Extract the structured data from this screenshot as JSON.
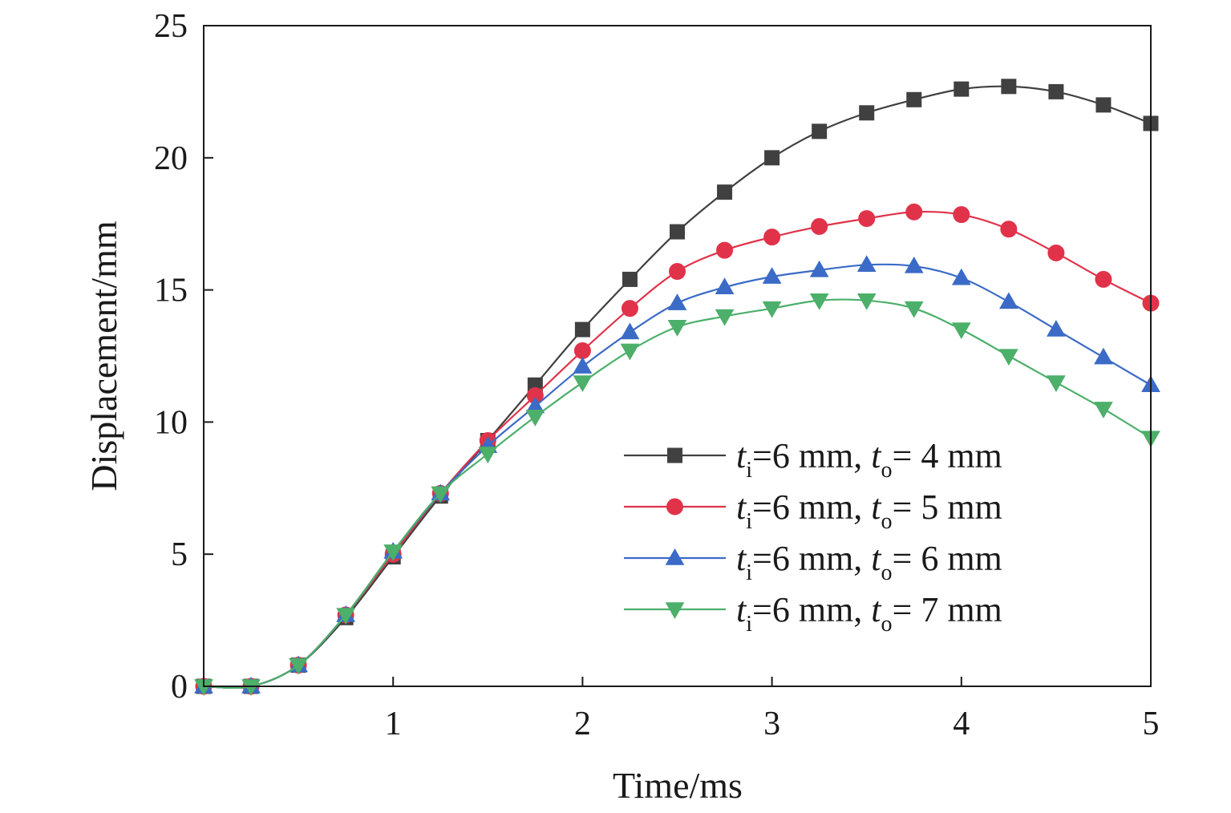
{
  "chart_data": {
    "type": "line",
    "title": "",
    "xlabel": "Time/ms",
    "ylabel": "Displacement/mm",
    "xlim": [
      0,
      5
    ],
    "ylim": [
      0,
      25
    ],
    "xticks": [
      1,
      2,
      3,
      4,
      5
    ],
    "yticks": [
      0,
      5,
      10,
      15,
      20,
      25
    ],
    "grid": false,
    "legend_position": "center-right",
    "x": [
      0,
      0.25,
      0.5,
      0.75,
      1.0,
      1.25,
      1.5,
      1.75,
      2.0,
      2.25,
      2.5,
      2.75,
      3.0,
      3.25,
      3.5,
      3.75,
      4.0,
      4.25,
      4.5,
      4.75,
      5.0
    ],
    "series": [
      {
        "name": "ti=6 mm, to= 4 mm",
        "legend": {
          "t1": "t",
          "s1": "i",
          "mid": "=6 mm, ",
          "t2": "t",
          "s2": "o",
          "tail": "= 4 mm"
        },
        "color": "#404040",
        "marker": "square",
        "values": [
          0,
          0,
          0.8,
          2.6,
          4.9,
          7.2,
          9.3,
          11.4,
          13.5,
          15.4,
          17.2,
          18.7,
          20.0,
          21.0,
          21.7,
          22.2,
          22.6,
          22.7,
          22.5,
          22.0,
          21.3
        ]
      },
      {
        "name": "ti=6 mm, to= 5 mm",
        "legend": {
          "t1": "t",
          "s1": "i",
          "mid": "=6 mm, ",
          "t2": "t",
          "s2": "o",
          "tail": "= 5 mm"
        },
        "color": "#e0334a",
        "marker": "circle",
        "values": [
          0,
          0,
          0.8,
          2.7,
          5.0,
          7.3,
          9.3,
          11.0,
          12.7,
          14.3,
          15.7,
          16.5,
          17.0,
          17.4,
          17.7,
          17.95,
          17.85,
          17.3,
          16.4,
          15.4,
          14.5
        ]
      },
      {
        "name": "ti=6 mm, to= 6 mm",
        "legend": {
          "t1": "t",
          "s1": "i",
          "mid": "=6 mm, ",
          "t2": "t",
          "s2": "o",
          "tail": "= 6 mm"
        },
        "color": "#3b6bc6",
        "marker": "triangle-up",
        "values": [
          0,
          0,
          0.8,
          2.7,
          5.1,
          7.3,
          9.1,
          10.6,
          12.1,
          13.4,
          14.5,
          15.1,
          15.5,
          15.75,
          15.95,
          15.9,
          15.45,
          14.55,
          13.5,
          12.45,
          11.4
        ]
      },
      {
        "name": "ti=6 mm, to= 7 mm",
        "legend": {
          "t1": "t",
          "s1": "i",
          "mid": "=6 mm, ",
          "t2": "t",
          "s2": "o",
          "tail": "= 7 mm"
        },
        "color": "#4caf6a",
        "marker": "triangle-down",
        "values": [
          0,
          0,
          0.8,
          2.7,
          5.1,
          7.3,
          8.8,
          10.2,
          11.5,
          12.7,
          13.6,
          14.0,
          14.3,
          14.6,
          14.6,
          14.3,
          13.5,
          12.5,
          11.5,
          10.5,
          9.4
        ]
      }
    ]
  }
}
